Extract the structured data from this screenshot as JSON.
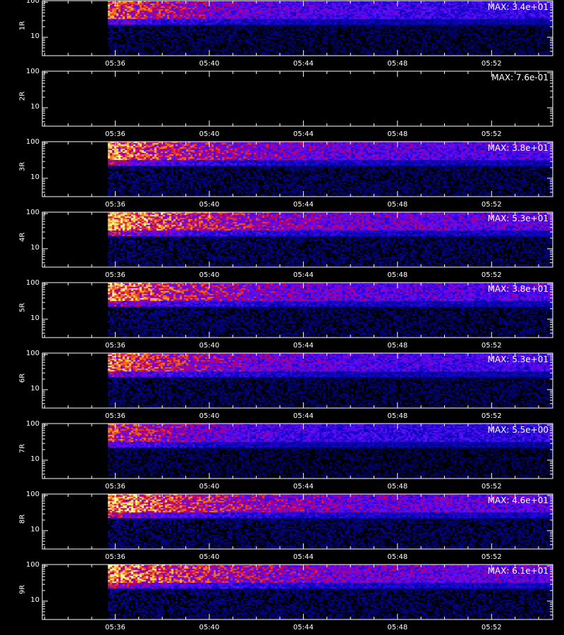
{
  "chart_data": {
    "type": "heatmap",
    "layout": "vertical stack of 9 spectrogram panels with a shared time axis",
    "colormap": "black-blue-red-yellow",
    "x_ticks": [
      "05:36",
      "05:40",
      "05:44",
      "05:48",
      "05:52"
    ],
    "x_tick_minutes": [
      36,
      40,
      44,
      48,
      52
    ],
    "x_range_minutes": [
      32.9,
      54.6
    ],
    "data_start_minute": 35.7,
    "y_scale": "log",
    "y_range": [
      3,
      110
    ],
    "y_ticks": [
      10,
      100
    ],
    "y_tick_labels": [
      "10",
      "100"
    ],
    "panels": [
      {
        "label": "1R",
        "max_label": "MAX: 3.4e+01",
        "max": 34,
        "intensity": 0.85
      },
      {
        "label": "2R",
        "max_label": "MAX: 7.6e-01",
        "max": 0.76,
        "intensity": 0.0
      },
      {
        "label": "3R",
        "max_label": "MAX: 3.8e+01",
        "max": 38,
        "intensity": 0.95
      },
      {
        "label": "4R",
        "max_label": "MAX: 5.3e+01",
        "max": 53,
        "intensity": 1.0
      },
      {
        "label": "5R",
        "max_label": "MAX: 3.8e+01",
        "max": 38,
        "intensity": 0.95
      },
      {
        "label": "6R",
        "max_label": "MAX: 5.3e+01",
        "max": 53,
        "intensity": 0.9
      },
      {
        "label": "7R",
        "max_label": "MAX: 5.5e+00",
        "max": 5.5,
        "intensity": 0.8
      },
      {
        "label": "8R",
        "max_label": "MAX: 4.6e+01",
        "max": 46,
        "intensity": 1.0
      },
      {
        "label": "9R",
        "max_label": "MAX: 6.1e+01",
        "max": 61,
        "intensity": 1.0
      }
    ],
    "xlabel": ""
  }
}
